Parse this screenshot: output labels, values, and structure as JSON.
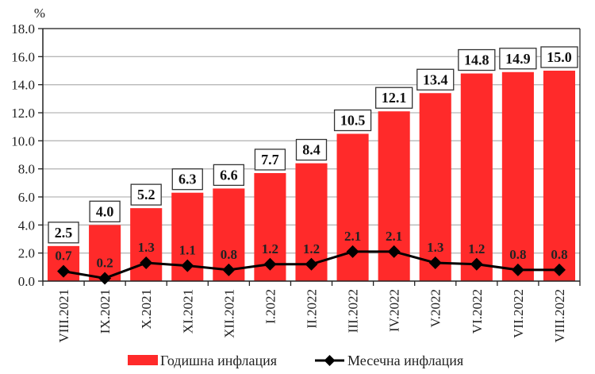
{
  "chart_data": {
    "type": "bar",
    "title": "",
    "unit_label": "%",
    "xlabel": "",
    "ylabel": "%",
    "ylim": [
      0,
      18
    ],
    "yticks": [
      "0.0",
      "2.0",
      "4.0",
      "6.0",
      "8.0",
      "10.0",
      "12.0",
      "14.0",
      "16.0",
      "18.0"
    ],
    "grid": true,
    "legend_position": "bottom",
    "categories": [
      "VIII.2021",
      "IX.2021",
      "X.2021",
      "XI.2021",
      "XII.2021",
      "I.2022",
      "II.2022",
      "III.2022",
      "IV.2022",
      "V.2022",
      "VI.2022",
      "VII.2022",
      "VIII.2022"
    ],
    "series": [
      {
        "name": "Годишна инфлация",
        "type": "bar",
        "color": "#ff2a2a",
        "values": [
          2.5,
          4.0,
          5.2,
          6.3,
          6.6,
          7.7,
          8.4,
          10.5,
          12.1,
          13.4,
          14.8,
          14.9,
          15.0
        ],
        "labels": [
          "2.5",
          "4.0",
          "5.2",
          "6.3",
          "6.6",
          "7.7",
          "8.4",
          "10.5",
          "12.1",
          "13.4",
          "14.8",
          "14.9",
          "15.0"
        ]
      },
      {
        "name": "Месечна инфлация",
        "type": "line",
        "color": "#000000",
        "marker": "diamond",
        "values": [
          0.7,
          0.2,
          1.3,
          1.1,
          0.8,
          1.2,
          1.2,
          2.1,
          2.1,
          1.3,
          1.2,
          0.8,
          0.8
        ],
        "labels": [
          "0.7",
          "0.2",
          "1.3",
          "1.1",
          "0.8",
          "1.2",
          "1.2",
          "2.1",
          "2.1",
          "1.3",
          "1.2",
          "0.8",
          "0.8"
        ]
      }
    ]
  },
  "legend": {
    "annual_label": "Годишна инфлация",
    "monthly_label": "Месечна инфлация"
  }
}
